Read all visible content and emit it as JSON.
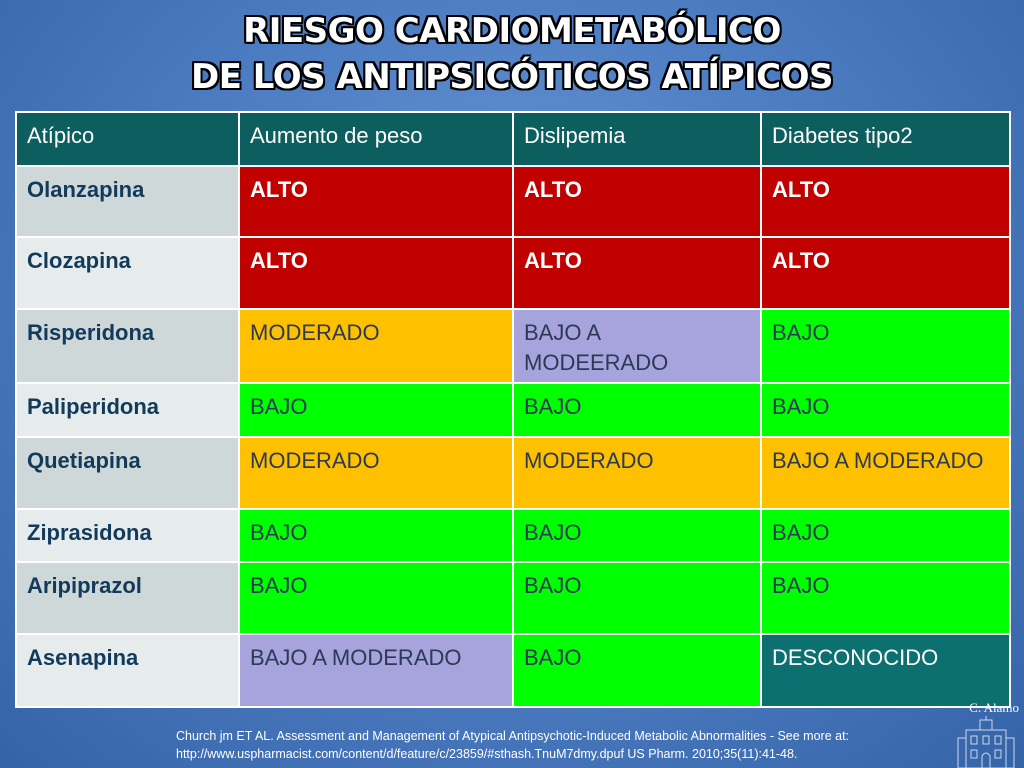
{
  "title": {
    "line1": "RIESGO CARDIOMETABÓLICO",
    "line2": "DE LOS ANTIPSICÓTICOS ATÍPICOS"
  },
  "table": {
    "headers": [
      "Atípico",
      "Aumento de  peso",
      "Dislipemia",
      "Diabetes tipo2"
    ],
    "rows": [
      {
        "name": "Olanzapina",
        "values": [
          "ALTO",
          "ALTO",
          "ALTO"
        ]
      },
      {
        "name": "Clozapina",
        "values": [
          "ALTO",
          "ALTO",
          "ALTO"
        ]
      },
      {
        "name": "Risperidona",
        "values": [
          "MODERADO",
          "BAJO A MODEERADO",
          "BAJO"
        ]
      },
      {
        "name": "Paliperidona",
        "values": [
          "BAJO",
          "BAJO",
          "BAJO"
        ]
      },
      {
        "name": "Quetiapina",
        "values": [
          "MODERADO",
          "MODERADO",
          "BAJO A MODERADO"
        ]
      },
      {
        "name": "Ziprasidona",
        "values": [
          "BAJO",
          "BAJO",
          "BAJO"
        ]
      },
      {
        "name": "Aripiprazol",
        "values": [
          "BAJO",
          "BAJO",
          "BAJO"
        ]
      },
      {
        "name": "Asenapina",
        "values": [
          "BAJO A MODERADO",
          "BAJO",
          "DESCONOCIDO"
        ]
      }
    ]
  },
  "colors": {
    "alto": "#c10000",
    "moderado": "#ffc000",
    "bajo": "#00ff00",
    "bajo_a_moderado": "#a7a3dc",
    "desconocido": "#0d7070",
    "header": "#0d5e5e"
  },
  "citation": {
    "line1": "Church  jm ET AL. Assessment and Management of Atypical Antipsychotic-Induced Metabolic Abnormalities - See more at:",
    "line2": "http://www.uspharmacist.com/content/d/feature/c/23859/#sthash.TnuM7dmy.dpuf US Pharm. 2010;35(11):41-48."
  },
  "signature": {
    "text": "C. Alamo"
  }
}
